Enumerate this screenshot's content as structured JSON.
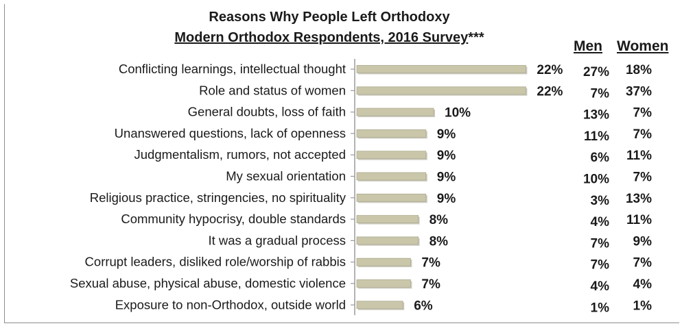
{
  "chart_data": {
    "type": "bar",
    "orientation": "horizontal",
    "title_line1": "Reasons Why People Left Orthodoxy",
    "title_line2": "Modern Orthodox Respondents, 2016 Survey",
    "title_suffix": "***",
    "categories": [
      "Conflicting learnings, intellectual thought",
      "Role and status of women",
      "General doubts, loss of faith",
      "Unanswered questions, lack of openness",
      "Judgmentalism, rumors, not accepted",
      "My sexual orientation",
      "Religious practice, stringencies, no spirituality",
      "Community hypocrisy, double standards",
      "It was a gradual process",
      "Corrupt leaders, disliked role/worship of rabbis",
      "Sexual abuse, physical abuse, domestic violence",
      "Exposure to non-Orthodox, outside world"
    ],
    "values": [
      22,
      22,
      10,
      9,
      9,
      9,
      9,
      8,
      8,
      7,
      7,
      6
    ],
    "value_suffix": "%",
    "columns": {
      "men_label": "Men",
      "women_label": "Women",
      "men": [
        27,
        7,
        13,
        11,
        6,
        10,
        3,
        4,
        7,
        7,
        4,
        1
      ],
      "women": [
        18,
        37,
        7,
        7,
        11,
        7,
        13,
        11,
        9,
        7,
        4,
        1
      ]
    },
    "bar_color": "#c9c6aa",
    "grid": false,
    "legend": "none"
  }
}
